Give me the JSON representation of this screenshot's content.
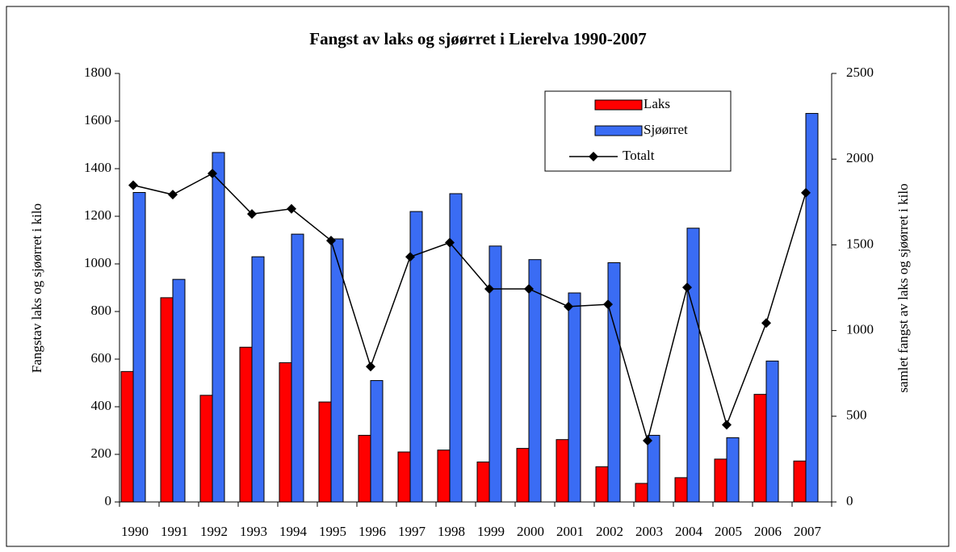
{
  "chart_data": {
    "type": "bar",
    "title": "Fangst av laks og sjøørret i Lierelva 1990-2007",
    "ylabel": "Fangstav laks og sjøørret i kilo",
    "y2label": "samlet fangst av laks  og sjøørret i kilo",
    "categories": [
      "1990",
      "1991",
      "1992",
      "1993",
      "1994",
      "1995",
      "1996",
      "1997",
      "1998",
      "1999",
      "2000",
      "2001",
      "2002",
      "2003",
      "2004",
      "2005",
      "2006",
      "2007"
    ],
    "series": [
      {
        "name": "Laks",
        "color": "#ff0000",
        "values": [
          548,
          858,
          448,
          650,
          585,
          420,
          280,
          210,
          218,
          168,
          225,
          262,
          148,
          78,
          102,
          180,
          452,
          172
        ]
      },
      {
        "name": "Sjøørret",
        "color": "#3a6cf4",
        "values": [
          1300,
          935,
          1468,
          1030,
          1125,
          1105,
          510,
          1220,
          1295,
          1075,
          1018,
          878,
          1005,
          280,
          1150,
          270,
          592,
          1632
        ]
      },
      {
        "name": "Totalt",
        "color": "#000000",
        "type": "line",
        "axis": "y2",
        "values": [
          1848,
          1793,
          1916,
          1680,
          1710,
          1525,
          790,
          1430,
          1513,
          1243,
          1243,
          1140,
          1153,
          358,
          1252,
          450,
          1044,
          1804
        ]
      }
    ],
    "ylim": [
      0,
      1800
    ],
    "yticks": [
      0,
      200,
      400,
      600,
      800,
      1000,
      1200,
      1400,
      1600,
      1800
    ],
    "y2lim": [
      0,
      2500
    ],
    "y2ticks": [
      0,
      500,
      1000,
      1500,
      2000,
      2500
    ],
    "legend": "top-right"
  }
}
